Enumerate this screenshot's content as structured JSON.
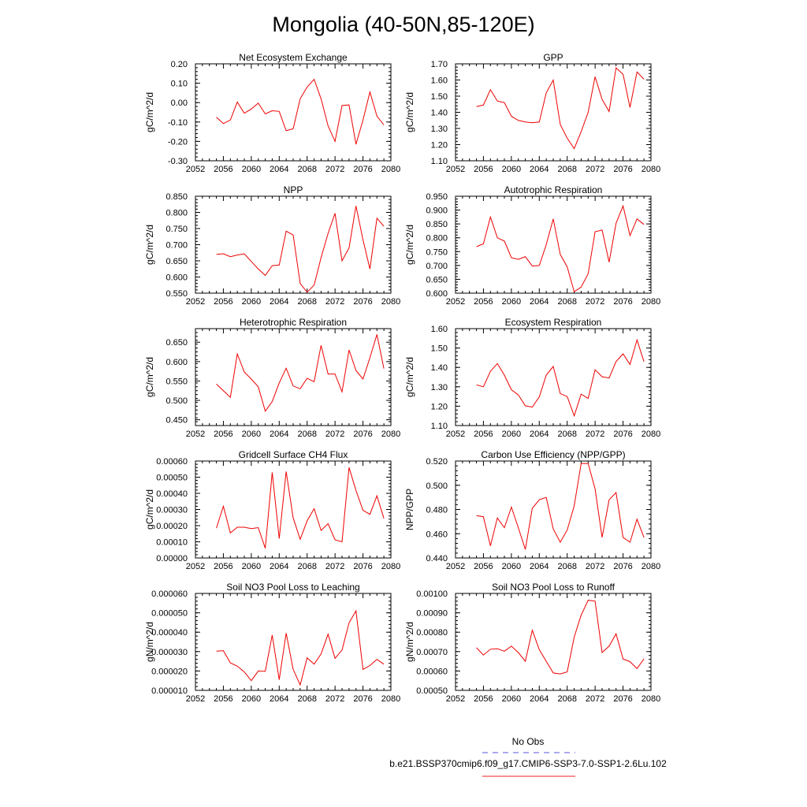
{
  "figure": {
    "title": "Mongolia (40-50N,85-120E)"
  },
  "legend": {
    "entries": [
      {
        "label": "No Obs",
        "color": "#5555dd",
        "dashed": true
      },
      {
        "label": "b.e21.BSSP370cmip6.f09_g17.CMIP6-SSP3-7.0-SSP1-2.6Lu.102",
        "color": "#ee2222",
        "dashed": false
      }
    ]
  },
  "colors": {
    "series": "#ee0000",
    "axis": "#000000"
  },
  "chart_data": [
    {
      "type": "line",
      "title": "Net Ecosystem Exchange",
      "xlabel": "",
      "ylabel": "gC/m^2/d",
      "xlim": [
        2052,
        2080
      ],
      "ylim": [
        -0.3,
        0.2
      ],
      "xticks": [
        "2052",
        "2056",
        "2060",
        "2064",
        "2068",
        "2072",
        "2076",
        "2080"
      ],
      "yticks": [
        "-0.30",
        "-0.20",
        "-0.10",
        "0.00",
        "0.10",
        "0.20"
      ],
      "x": [
        2055,
        2056,
        2057,
        2058,
        2059,
        2060,
        2061,
        2062,
        2063,
        2064,
        2065,
        2066,
        2067,
        2068,
        2069,
        2070,
        2071,
        2072,
        2073,
        2074,
        2075,
        2076,
        2077,
        2078,
        2079
      ],
      "values": [
        -0.075,
        -0.108,
        -0.09,
        0.003,
        -0.055,
        -0.033,
        -0.003,
        -0.058,
        -0.042,
        -0.045,
        -0.145,
        -0.135,
        0.02,
        0.08,
        0.12,
        0.02,
        -0.12,
        -0.2,
        -0.015,
        -0.012,
        -0.215,
        -0.09,
        0.055,
        -0.07,
        -0.115
      ]
    },
    {
      "type": "line",
      "title": "GPP",
      "xlabel": "",
      "ylabel": "gC/m^2/d",
      "xlim": [
        2052,
        2080
      ],
      "ylim": [
        1.1,
        1.7
      ],
      "xticks": [
        "2052",
        "2056",
        "2060",
        "2064",
        "2068",
        "2072",
        "2076",
        "2080"
      ],
      "yticks": [
        "1.10",
        "1.20",
        "1.30",
        "1.40",
        "1.50",
        "1.60",
        "1.70"
      ],
      "x": [
        2055,
        2056,
        2057,
        2058,
        2059,
        2060,
        2061,
        2062,
        2063,
        2064,
        2065,
        2066,
        2067,
        2068,
        2069,
        2070,
        2071,
        2072,
        2073,
        2074,
        2075,
        2076,
        2077,
        2078,
        2079
      ],
      "values": [
        1.435,
        1.445,
        1.54,
        1.47,
        1.46,
        1.375,
        1.35,
        1.34,
        1.335,
        1.34,
        1.52,
        1.6,
        1.325,
        1.24,
        1.175,
        1.28,
        1.4,
        1.62,
        1.48,
        1.405,
        1.675,
        1.635,
        1.43,
        1.65,
        1.605
      ]
    },
    {
      "type": "line",
      "title": "NPP",
      "xlabel": "",
      "ylabel": "gC/m^2/d",
      "xlim": [
        2052,
        2080
      ],
      "ylim": [
        0.55,
        0.85
      ],
      "xticks": [
        "2052",
        "2056",
        "2060",
        "2064",
        "2068",
        "2072",
        "2076",
        "2080"
      ],
      "yticks": [
        "0.550",
        "0.600",
        "0.650",
        "0.700",
        "0.750",
        "0.800",
        "0.850"
      ],
      "x": [
        2055,
        2056,
        2057,
        2058,
        2059,
        2060,
        2061,
        2062,
        2063,
        2064,
        2065,
        2066,
        2067,
        2068,
        2069,
        2070,
        2071,
        2072,
        2073,
        2074,
        2075,
        2076,
        2077,
        2078,
        2079
      ],
      "values": [
        0.67,
        0.672,
        0.663,
        0.668,
        0.672,
        0.648,
        0.625,
        0.605,
        0.635,
        0.637,
        0.742,
        0.73,
        0.58,
        0.553,
        0.575,
        0.66,
        0.735,
        0.797,
        0.65,
        0.69,
        0.82,
        0.715,
        0.625,
        0.782,
        0.757
      ]
    },
    {
      "type": "line",
      "title": "Autotrophic Respiration",
      "xlabel": "",
      "ylabel": "gC/m^2/d",
      "xlim": [
        2052,
        2080
      ],
      "ylim": [
        0.6,
        0.95
      ],
      "xticks": [
        "2052",
        "2056",
        "2060",
        "2064",
        "2068",
        "2072",
        "2076",
        "2080"
      ],
      "yticks": [
        "0.600",
        "0.650",
        "0.700",
        "0.750",
        "0.800",
        "0.850",
        "0.900",
        "0.950"
      ],
      "x": [
        2055,
        2056,
        2057,
        2058,
        2059,
        2060,
        2061,
        2062,
        2063,
        2064,
        2065,
        2066,
        2067,
        2068,
        2069,
        2070,
        2071,
        2072,
        2073,
        2074,
        2075,
        2076,
        2077,
        2078,
        2079
      ],
      "values": [
        0.768,
        0.778,
        0.875,
        0.8,
        0.788,
        0.728,
        0.722,
        0.732,
        0.698,
        0.7,
        0.775,
        0.868,
        0.74,
        0.695,
        0.605,
        0.622,
        0.67,
        0.822,
        0.828,
        0.712,
        0.852,
        0.915,
        0.808,
        0.868,
        0.848
      ]
    },
    {
      "type": "line",
      "title": "Heterotrophic Respiration",
      "xlabel": "",
      "ylabel": "gC/m^2/d",
      "xlim": [
        2052,
        2080
      ],
      "ylim": [
        0.435,
        0.685
      ],
      "xticks": [
        "2052",
        "2056",
        "2060",
        "2064",
        "2068",
        "2072",
        "2076",
        "2080"
      ],
      "yticks": [
        "0.450",
        "0.500",
        "0.550",
        "0.600",
        "0.650"
      ],
      "x": [
        2055,
        2056,
        2057,
        2058,
        2059,
        2060,
        2061,
        2062,
        2063,
        2064,
        2065,
        2066,
        2067,
        2068,
        2069,
        2070,
        2071,
        2072,
        2073,
        2074,
        2075,
        2076,
        2077,
        2078,
        2079
      ],
      "values": [
        0.542,
        0.525,
        0.508,
        0.62,
        0.573,
        0.555,
        0.535,
        0.472,
        0.497,
        0.545,
        0.583,
        0.537,
        0.53,
        0.557,
        0.548,
        0.642,
        0.568,
        0.568,
        0.522,
        0.63,
        0.577,
        0.555,
        0.61,
        0.67,
        0.582
      ]
    },
    {
      "type": "line",
      "title": "Ecosystem Respiration",
      "xlabel": "",
      "ylabel": "gC/m^2/d",
      "xlim": [
        2052,
        2080
      ],
      "ylim": [
        1.1,
        1.6
      ],
      "xticks": [
        "2052",
        "2056",
        "2060",
        "2064",
        "2068",
        "2072",
        "2076",
        "2080"
      ],
      "yticks": [
        "1.10",
        "1.20",
        "1.30",
        "1.40",
        "1.50",
        "1.60"
      ],
      "x": [
        2055,
        2056,
        2057,
        2058,
        2059,
        2060,
        2061,
        2062,
        2063,
        2064,
        2065,
        2066,
        2067,
        2068,
        2069,
        2070,
        2071,
        2072,
        2073,
        2074,
        2075,
        2076,
        2077,
        2078,
        2079
      ],
      "values": [
        1.31,
        1.3,
        1.38,
        1.42,
        1.36,
        1.285,
        1.258,
        1.202,
        1.195,
        1.248,
        1.36,
        1.405,
        1.265,
        1.25,
        1.15,
        1.262,
        1.24,
        1.388,
        1.352,
        1.345,
        1.43,
        1.47,
        1.415,
        1.542,
        1.43
      ]
    },
    {
      "type": "line",
      "title": "Gridcell Surface CH4 Flux",
      "xlabel": "",
      "ylabel": "gC/m^2/d",
      "xlim": [
        2052,
        2080
      ],
      "ylim": [
        0,
        0.0006
      ],
      "xticks": [
        "2052",
        "2056",
        "2060",
        "2064",
        "2068",
        "2072",
        "2076",
        "2080"
      ],
      "yticks": [
        "0.00000",
        "0.00010",
        "0.00020",
        "0.00030",
        "0.00040",
        "0.00050",
        "0.00060"
      ],
      "x": [
        2055,
        2056,
        2057,
        2058,
        2059,
        2060,
        2061,
        2062,
        2063,
        2064,
        2065,
        2066,
        2067,
        2068,
        2069,
        2070,
        2071,
        2072,
        2073,
        2074,
        2075,
        2076,
        2077,
        2078,
        2079
      ],
      "values": [
        0.000185,
        0.00032,
        0.000155,
        0.00019,
        0.00019,
        0.000182,
        0.000188,
        6e-05,
        0.00053,
        0.00012,
        0.000535,
        0.000248,
        0.000115,
        0.00023,
        0.000305,
        0.00017,
        0.000212,
        0.000112,
        0.0001,
        0.00056,
        0.000418,
        0.000295,
        0.00027,
        0.000385,
        0.000245
      ]
    },
    {
      "type": "line",
      "title": "Carbon Use Efficiency (NPP/GPP)",
      "xlabel": "",
      "ylabel": "NPP/GPP",
      "xlim": [
        2052,
        2080
      ],
      "ylim": [
        0.44,
        0.52
      ],
      "xticks": [
        "2052",
        "2056",
        "2060",
        "2064",
        "2068",
        "2072",
        "2076",
        "2080"
      ],
      "yticks": [
        "0.440",
        "0.460",
        "0.480",
        "0.500",
        "0.520"
      ],
      "x": [
        2055,
        2056,
        2057,
        2058,
        2059,
        2060,
        2061,
        2062,
        2063,
        2064,
        2065,
        2066,
        2067,
        2068,
        2069,
        2070,
        2071,
        2072,
        2073,
        2074,
        2075,
        2076,
        2077,
        2078,
        2079
      ],
      "values": [
        0.475,
        0.474,
        0.45,
        0.473,
        0.465,
        0.482,
        0.465,
        0.447,
        0.481,
        0.488,
        0.49,
        0.464,
        0.453,
        0.463,
        0.483,
        0.518,
        0.518,
        0.497,
        0.457,
        0.488,
        0.494,
        0.457,
        0.453,
        0.472,
        0.457
      ]
    },
    {
      "type": "line",
      "title": "Soil NO3 Pool Loss to Leaching",
      "xlabel": "",
      "ylabel": "gN/m^2/d",
      "xlim": [
        2052,
        2080
      ],
      "ylim": [
        1e-05,
        6e-05
      ],
      "xticks": [
        "2052",
        "2056",
        "2060",
        "2064",
        "2068",
        "2072",
        "2076",
        "2080"
      ],
      "yticks": [
        "0.000010",
        "0.000020",
        "0.000030",
        "0.000040",
        "0.000050",
        "0.000060"
      ],
      "x": [
        2055,
        2056,
        2057,
        2058,
        2059,
        2060,
        2061,
        2062,
        2063,
        2064,
        2065,
        2066,
        2067,
        2068,
        2069,
        2070,
        2071,
        2072,
        2073,
        2074,
        2075,
        2076,
        2077,
        2078,
        2079
      ],
      "values": [
        3.02e-05,
        3.05e-05,
        2.42e-05,
        2.25e-05,
        1.95e-05,
        1.5e-05,
        2e-05,
        1.98e-05,
        3.85e-05,
        1.55e-05,
        3.95e-05,
        2.08e-05,
        1.28e-05,
        2.68e-05,
        2.35e-05,
        2.88e-05,
        3.9e-05,
        2.65e-05,
        3.08e-05,
        4.48e-05,
        5.1e-05,
        2.08e-05,
        2.28e-05,
        2.6e-05,
        2.35e-05
      ]
    },
    {
      "type": "line",
      "title": "Soil NO3 Pool Loss to Runoff",
      "xlabel": "",
      "ylabel": "gN/m^2/d",
      "xlim": [
        2052,
        2080
      ],
      "ylim": [
        0.0005,
        0.001
      ],
      "xticks": [
        "2052",
        "2056",
        "2060",
        "2064",
        "2068",
        "2072",
        "2076",
        "2080"
      ],
      "yticks": [
        "0.00050",
        "0.00060",
        "0.00070",
        "0.00080",
        "0.00090",
        "0.00100"
      ],
      "x": [
        2055,
        2056,
        2057,
        2058,
        2059,
        2060,
        2061,
        2062,
        2063,
        2064,
        2065,
        2066,
        2067,
        2068,
        2069,
        2070,
        2071,
        2072,
        2073,
        2074,
        2075,
        2076,
        2077,
        2078,
        2079
      ],
      "values": [
        0.00072,
        0.000682,
        0.000712,
        0.000715,
        0.000702,
        0.000728,
        0.000695,
        0.00065,
        0.00081,
        0.00071,
        0.00065,
        0.00059,
        0.000585,
        0.000595,
        0.000775,
        0.000888,
        0.000965,
        0.00096,
        0.000695,
        0.000728,
        0.000792,
        0.000662,
        0.000648,
        0.000612,
        0.000662
      ]
    }
  ]
}
